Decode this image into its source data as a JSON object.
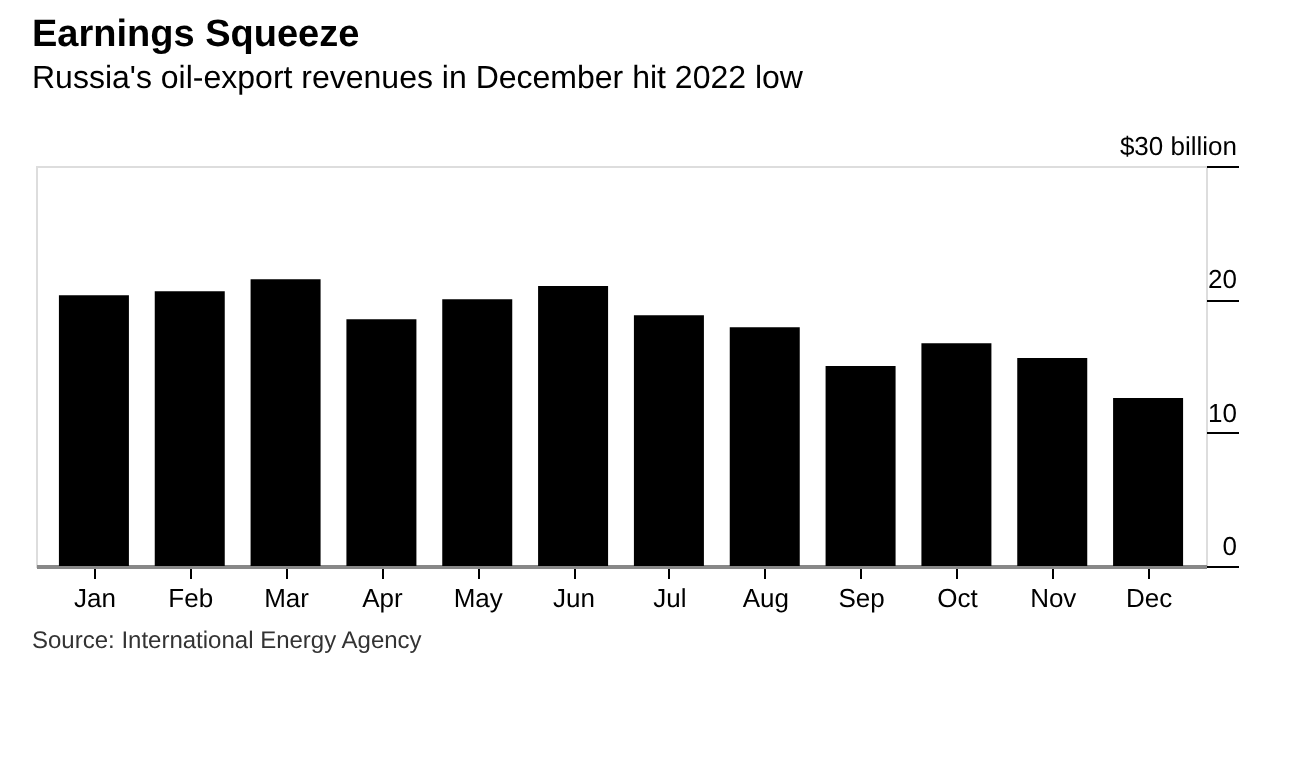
{
  "chart_data": {
    "type": "bar",
    "title": "Earnings Squeeze",
    "subtitle": "Russia's oil-export revenues in December hit 2022 low",
    "categories": [
      "Jan",
      "Feb",
      "Mar",
      "Apr",
      "May",
      "Jun",
      "Jul",
      "Aug",
      "Sep",
      "Oct",
      "Nov",
      "Dec"
    ],
    "values": [
      20.3,
      20.6,
      21.5,
      18.5,
      20.0,
      21.0,
      18.8,
      17.9,
      15.0,
      16.7,
      15.6,
      12.6
    ],
    "color": "#000000",
    "ylim": [
      0,
      30
    ],
    "yticks": [
      0,
      10,
      20,
      {
        "value": 30,
        "label": "$30 billion"
      }
    ],
    "grid": false,
    "annotations": [
      "Source: International Energy Agency"
    ]
  }
}
